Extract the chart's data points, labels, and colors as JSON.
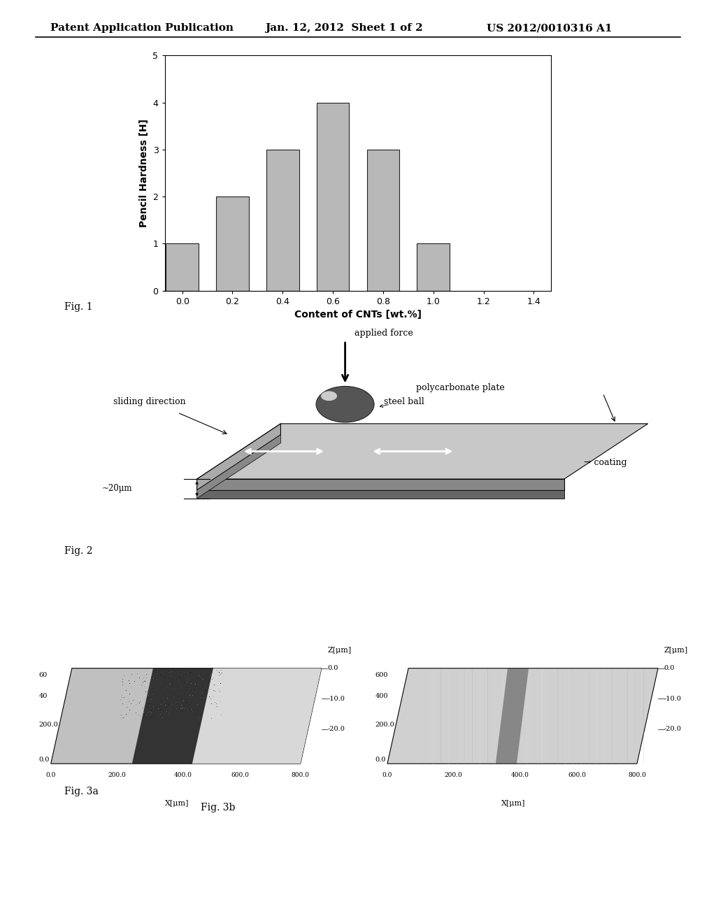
{
  "header_left": "Patent Application Publication",
  "header_mid": "Jan. 12, 2012  Sheet 1 of 2",
  "header_right": "US 2012/0010316 A1",
  "bar_x": [
    0.0,
    0.2,
    0.4,
    0.6,
    0.8,
    1.0,
    1.2
  ],
  "bar_heights": [
    1,
    2,
    3,
    4,
    3,
    1,
    0
  ],
  "bar_color": "#b0b0b0",
  "bar_edge_color": "#222222",
  "bar_width": 0.13,
  "ylabel": "Pencil Hardness [H]",
  "xlabel": "Content of CNTs [wt.%]",
  "ylim": [
    0,
    5
  ],
  "yticks": [
    0,
    1,
    2,
    3,
    4,
    5
  ],
  "xticks": [
    0.0,
    0.2,
    0.4,
    0.6,
    0.8,
    1.0,
    1.2,
    1.4
  ],
  "xtick_labels": [
    "0.0",
    "0.2",
    "0.4",
    "0.6",
    "0.8",
    "1.0",
    "1.2",
    "1.4"
  ],
  "fig1_label": "Fig. 1",
  "fig2_label": "Fig. 2",
  "fig3a_label": "Fig. 3a",
  "fig3b_label": "Fig. 3b",
  "bg_color": "#ffffff",
  "text_color": "#000000",
  "font_size_header": 11,
  "font_size_axis": 10,
  "font_size_tick": 9,
  "font_size_fig_label": 10
}
